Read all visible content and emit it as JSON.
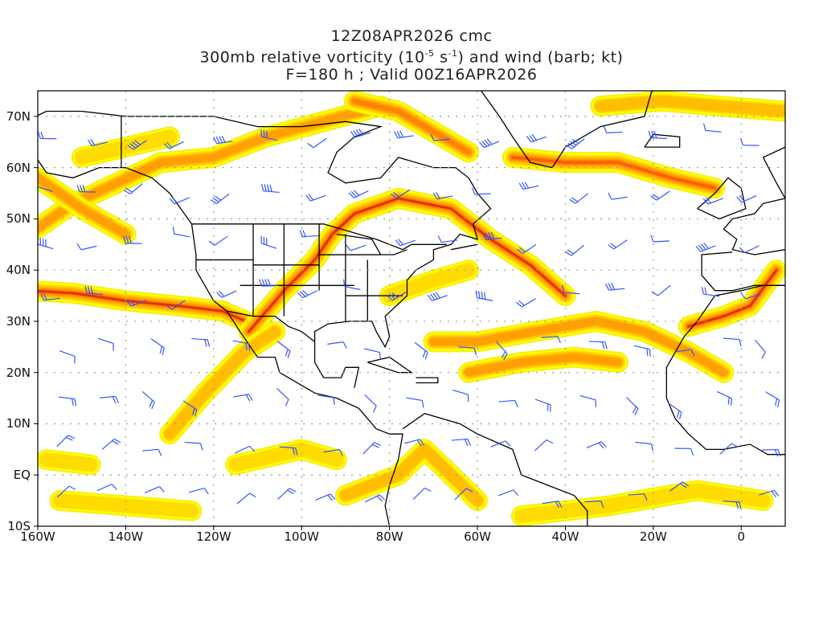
{
  "title": {
    "line1": "12Z08APR2026 cmc",
    "line2_prefix": "300mb relative vorticity (10",
    "line2_exp1": "-5",
    "line2_mid": " s",
    "line2_exp2": "-1",
    "line2_suffix": ") and wind (barb; kt)",
    "line3": "F=180 h ; Valid 00Z16APR2026"
  },
  "axes": {
    "lat_labels": [
      {
        "label": "70N",
        "lat": 70
      },
      {
        "label": "60N",
        "lat": 60
      },
      {
        "label": "50N",
        "lat": 50
      },
      {
        "label": "40N",
        "lat": 40
      },
      {
        "label": "30N",
        "lat": 30
      },
      {
        "label": "20N",
        "lat": 20
      },
      {
        "label": "10N",
        "lat": 10
      },
      {
        "label": "EQ",
        "lat": 0
      },
      {
        "label": "10S",
        "lat": -10
      }
    ],
    "lon_labels": [
      {
        "label": "160W",
        "lon": -160
      },
      {
        "label": "140W",
        "lon": -140
      },
      {
        "label": "120W",
        "lon": -120
      },
      {
        "label": "100W",
        "lon": -100
      },
      {
        "label": "80W",
        "lon": -80
      },
      {
        "label": "60W",
        "lon": -60
      },
      {
        "label": "40W",
        "lon": -40
      },
      {
        "label": "20W",
        "lon": -20
      },
      {
        "label": "0",
        "lon": 0
      }
    ],
    "lon_range": [
      -160,
      10
    ],
    "lat_range": [
      -10,
      75
    ]
  },
  "colors": {
    "shading": [
      "#f0f000",
      "#ffff00",
      "#ffdc00",
      "#ffbe00",
      "#ffa000",
      "#ff8200",
      "#ff5a00",
      "#e63200"
    ],
    "barb": "#3355ff",
    "coast": "#000000",
    "grid": "#999999"
  }
}
